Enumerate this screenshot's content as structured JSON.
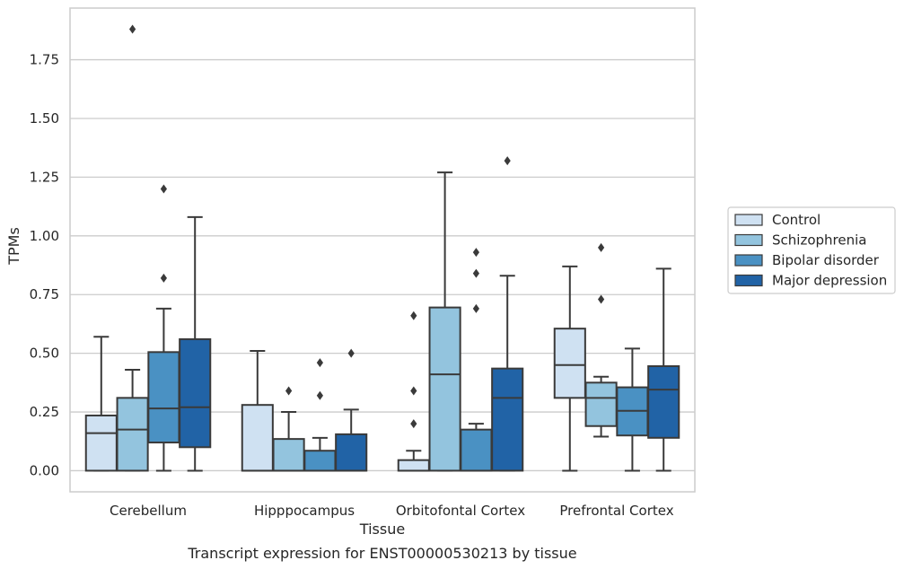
{
  "chart_data": {
    "type": "box",
    "xlabel": "Tissue",
    "ylabel": "TPMs",
    "caption": "Transcript expression for ENST00000530213 by tissue",
    "ylim": [
      -0.09,
      1.97
    ],
    "yticks": [
      "0.00",
      "0.25",
      "0.50",
      "0.75",
      "1.00",
      "1.25",
      "1.50",
      "1.75"
    ],
    "grid": "horizontal",
    "legend_position": "right",
    "categories": [
      "Cerebellum",
      "Hipppocampus",
      "Orbitofontal Cortex",
      "Prefrontal Cortex"
    ],
    "series": [
      {
        "name": "Control",
        "color": "#cfe1f2",
        "boxes": [
          {
            "whisker_low": 0,
            "q1": 0,
            "median": 0.16,
            "q3": 0.235,
            "whisker_high": 0.57,
            "outliers": []
          },
          {
            "whisker_low": 0,
            "q1": 0,
            "median": 0,
            "q3": 0.28,
            "whisker_high": 0.51,
            "outliers": []
          },
          {
            "whisker_low": 0,
            "q1": 0,
            "median": 0,
            "q3": 0.045,
            "whisker_high": 0.085,
            "outliers": [
              0.2,
              0.34,
              0.66
            ]
          },
          {
            "whisker_low": 0,
            "q1": 0.31,
            "median": 0.45,
            "q3": 0.605,
            "whisker_high": 0.87,
            "outliers": []
          }
        ]
      },
      {
        "name": "Schizophrenia",
        "color": "#93c4de",
        "boxes": [
          {
            "whisker_low": 0,
            "q1": 0,
            "median": 0.175,
            "q3": 0.31,
            "whisker_high": 0.43,
            "outliers": [
              1.88
            ]
          },
          {
            "whisker_low": 0,
            "q1": 0,
            "median": 0,
            "q3": 0.135,
            "whisker_high": 0.25,
            "outliers": [
              0.34
            ]
          },
          {
            "whisker_low": 0,
            "q1": 0,
            "median": 0.41,
            "q3": 0.695,
            "whisker_high": 1.27,
            "outliers": []
          },
          {
            "whisker_low": 0.145,
            "q1": 0.19,
            "median": 0.31,
            "q3": 0.375,
            "whisker_high": 0.4,
            "outliers": [
              0.73,
              0.95
            ]
          }
        ]
      },
      {
        "name": "Bipolar disorder",
        "color": "#4a91c3",
        "boxes": [
          {
            "whisker_low": 0,
            "q1": 0.12,
            "median": 0.265,
            "q3": 0.505,
            "whisker_high": 0.69,
            "outliers": [
              0.82,
              1.2
            ]
          },
          {
            "whisker_low": 0,
            "q1": 0,
            "median": 0,
            "q3": 0.085,
            "whisker_high": 0.14,
            "outliers": [
              0.32,
              0.46
            ]
          },
          {
            "whisker_low": 0,
            "q1": 0,
            "median": 0,
            "q3": 0.175,
            "whisker_high": 0.2,
            "outliers": [
              0.69,
              0.84,
              0.93
            ]
          },
          {
            "whisker_low": 0,
            "q1": 0.15,
            "median": 0.255,
            "q3": 0.355,
            "whisker_high": 0.52,
            "outliers": []
          }
        ]
      },
      {
        "name": "Major depression",
        "color": "#2163a6",
        "boxes": [
          {
            "whisker_low": 0,
            "q1": 0.1,
            "median": 0.27,
            "q3": 0.56,
            "whisker_high": 1.08,
            "outliers": []
          },
          {
            "whisker_low": 0,
            "q1": 0,
            "median": 0,
            "q3": 0.155,
            "whisker_high": 0.26,
            "outliers": [
              0.5
            ]
          },
          {
            "whisker_low": 0,
            "q1": 0,
            "median": 0.31,
            "q3": 0.435,
            "whisker_high": 0.83,
            "outliers": [
              1.32
            ]
          },
          {
            "whisker_low": 0,
            "q1": 0.14,
            "median": 0.345,
            "q3": 0.445,
            "whisker_high": 0.86,
            "outliers": []
          }
        ]
      }
    ],
    "colors": {
      "edge": "#3a3a3a",
      "grid": "#cccccc",
      "frame": "#cccccc"
    }
  }
}
